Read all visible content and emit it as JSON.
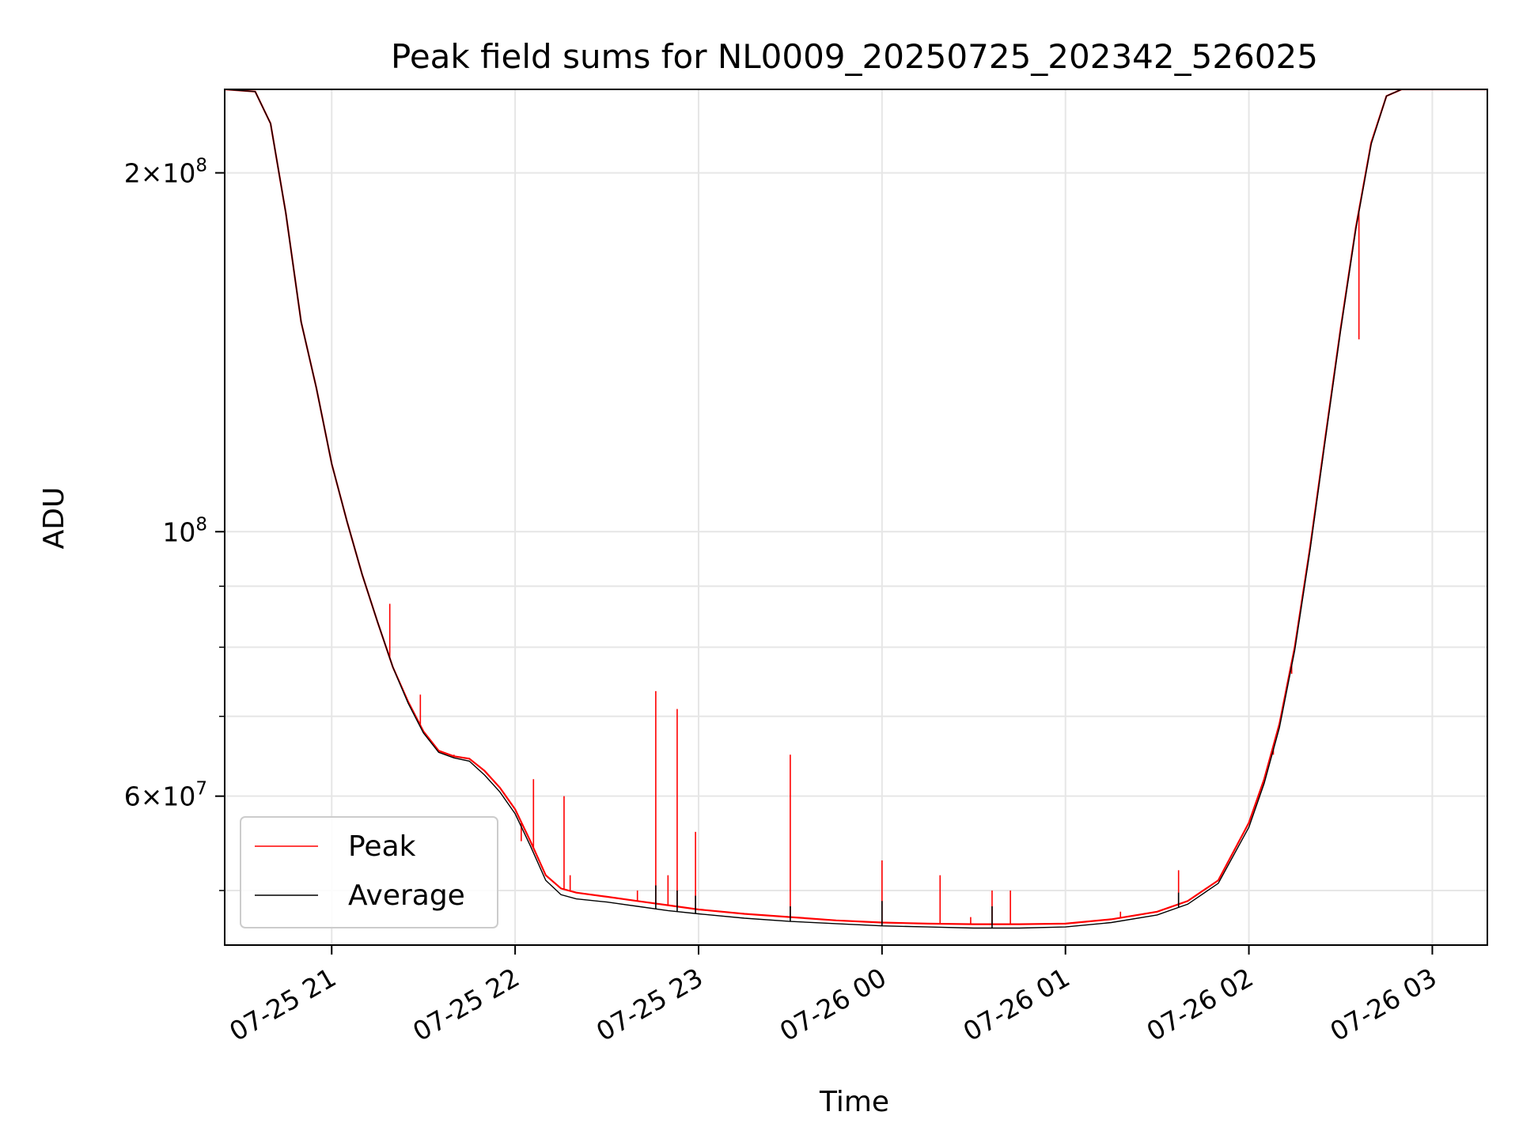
{
  "chart_data": {
    "type": "line",
    "title": "Peak field sums for NL0009_20250725_202342_526025",
    "xlabel": "Time",
    "ylabel": "ADU",
    "y_scale": "log",
    "ylim": [
      45000000,
      235000000
    ],
    "xlim": [
      "2025-07-25 20:25",
      "2025-07-26 03:18"
    ],
    "x_ticks": [
      {
        "t": "2025-07-25 21:00",
        "label": "07-25 21"
      },
      {
        "t": "2025-07-25 22:00",
        "label": "07-25 22"
      },
      {
        "t": "2025-07-25 23:00",
        "label": "07-25 23"
      },
      {
        "t": "2025-07-26 00:00",
        "label": "07-26 00"
      },
      {
        "t": "2025-07-26 01:00",
        "label": "07-26 01"
      },
      {
        "t": "2025-07-26 02:00",
        "label": "07-26 02"
      },
      {
        "t": "2025-07-26 03:00",
        "label": "07-26 03"
      }
    ],
    "y_ticks": [
      {
        "v": 200000000,
        "base": "2",
        "exp": "8"
      },
      {
        "v": 100000000,
        "base": "",
        "exp": "8"
      },
      {
        "v": 60000000,
        "base": "6",
        "exp": "7"
      }
    ],
    "y_minor": [
      50000000,
      70000000,
      80000000,
      90000000
    ],
    "grid": true,
    "legend_position": "lower-left",
    "colors": {
      "peak": "#ff0000",
      "average": "#000000",
      "grid": "#e6e6e6"
    },
    "series": [
      {
        "name": "Peak",
        "color": "#ff0000",
        "points": [
          [
            "2025-07-25 20:25",
            235000000
          ],
          [
            "2025-07-25 20:35",
            234000000
          ],
          [
            "2025-07-25 20:40",
            220000000
          ],
          [
            "2025-07-25 20:45",
            185000000
          ],
          [
            "2025-07-25 20:50",
            150000000
          ],
          [
            "2025-07-25 20:55",
            132000000
          ],
          [
            "2025-07-25 21:00",
            114000000
          ],
          [
            "2025-07-25 21:05",
            102000000
          ],
          [
            "2025-07-25 21:10",
            92000000
          ],
          [
            "2025-07-25 21:15",
            84000000
          ],
          [
            "2025-07-25 21:20",
            77000000
          ],
          [
            "2025-07-25 21:25",
            72000000
          ],
          [
            "2025-07-25 21:30",
            68000000
          ],
          [
            "2025-07-25 21:35",
            65500000
          ],
          [
            "2025-07-25 21:40",
            64800000
          ],
          [
            "2025-07-25 21:45",
            64500000
          ],
          [
            "2025-07-25 21:50",
            63000000
          ],
          [
            "2025-07-25 21:55",
            61000000
          ],
          [
            "2025-07-25 22:00",
            58500000
          ],
          [
            "2025-07-25 22:05",
            55000000
          ],
          [
            "2025-07-25 22:10",
            51500000
          ],
          [
            "2025-07-25 22:15",
            50200000
          ],
          [
            "2025-07-25 22:20",
            49800000
          ],
          [
            "2025-07-25 22:30",
            49400000
          ],
          [
            "2025-07-25 22:40",
            49000000
          ],
          [
            "2025-07-25 22:50",
            48600000
          ],
          [
            "2025-07-25 23:00",
            48200000
          ],
          [
            "2025-07-25 23:15",
            47800000
          ],
          [
            "2025-07-25 23:30",
            47500000
          ],
          [
            "2025-07-25 23:45",
            47200000
          ],
          [
            "2025-07-26 00:00",
            47000000
          ],
          [
            "2025-07-26 00:15",
            46900000
          ],
          [
            "2025-07-26 00:30",
            46850000
          ],
          [
            "2025-07-26 00:45",
            46850000
          ],
          [
            "2025-07-26 01:00",
            46900000
          ],
          [
            "2025-07-26 01:15",
            47300000
          ],
          [
            "2025-07-26 01:30",
            48000000
          ],
          [
            "2025-07-26 01:40",
            49000000
          ],
          [
            "2025-07-26 01:50",
            51000000
          ],
          [
            "2025-07-26 02:00",
            57000000
          ],
          [
            "2025-07-26 02:05",
            62000000
          ],
          [
            "2025-07-26 02:10",
            69000000
          ],
          [
            "2025-07-26 02:15",
            80000000
          ],
          [
            "2025-07-26 02:20",
            97000000
          ],
          [
            "2025-07-26 02:25",
            120000000
          ],
          [
            "2025-07-26 02:30",
            148000000
          ],
          [
            "2025-07-26 02:35",
            180000000
          ],
          [
            "2025-07-26 02:40",
            212000000
          ],
          [
            "2025-07-26 02:45",
            232000000
          ],
          [
            "2025-07-26 02:50",
            235000000
          ],
          [
            "2025-07-26 03:18",
            235000000
          ]
        ],
        "spikes": [
          [
            "2025-07-25 21:19",
            87000000
          ],
          [
            "2025-07-25 21:29",
            73000000
          ],
          [
            "2025-07-25 21:40",
            65000000
          ],
          [
            "2025-07-25 22:02",
            55000000
          ],
          [
            "2025-07-25 22:06",
            62000000
          ],
          [
            "2025-07-25 22:16",
            60000000
          ],
          [
            "2025-07-25 22:18",
            51500000
          ],
          [
            "2025-07-25 22:40",
            50000000
          ],
          [
            "2025-07-25 22:46",
            73500000
          ],
          [
            "2025-07-25 22:50",
            51500000
          ],
          [
            "2025-07-25 22:53",
            71000000
          ],
          [
            "2025-07-25 22:59",
            56000000
          ],
          [
            "2025-07-25 23:30",
            65000000
          ],
          [
            "2025-07-26 00:00",
            53000000
          ],
          [
            "2025-07-26 00:19",
            51500000
          ],
          [
            "2025-07-26 00:29",
            47500000
          ],
          [
            "2025-07-26 00:36",
            50000000
          ],
          [
            "2025-07-26 00:42",
            50000000
          ],
          [
            "2025-07-26 01:18",
            48000000
          ],
          [
            "2025-07-26 01:37",
            52000000
          ],
          [
            "2025-07-26 02:03",
            60000000
          ],
          [
            "2025-07-26 02:08",
            65000000
          ],
          [
            "2025-07-26 02:14",
            76000000
          ],
          [
            "2025-07-26 02:36",
            145000000
          ]
        ]
      },
      {
        "name": "Average",
        "color": "#000000",
        "points": [
          [
            "2025-07-25 20:25",
            235000000
          ],
          [
            "2025-07-25 20:35",
            234000000
          ],
          [
            "2025-07-25 20:40",
            220000000
          ],
          [
            "2025-07-25 20:45",
            185000000
          ],
          [
            "2025-07-25 20:50",
            150000000
          ],
          [
            "2025-07-25 20:55",
            132000000
          ],
          [
            "2025-07-25 21:00",
            114000000
          ],
          [
            "2025-07-25 21:05",
            102000000
          ],
          [
            "2025-07-25 21:10",
            92000000
          ],
          [
            "2025-07-25 21:15",
            84000000
          ],
          [
            "2025-07-25 21:20",
            77000000
          ],
          [
            "2025-07-25 21:25",
            71800000
          ],
          [
            "2025-07-25 21:30",
            67800000
          ],
          [
            "2025-07-25 21:35",
            65300000
          ],
          [
            "2025-07-25 21:40",
            64600000
          ],
          [
            "2025-07-25 21:45",
            64200000
          ],
          [
            "2025-07-25 21:50",
            62500000
          ],
          [
            "2025-07-25 21:55",
            60500000
          ],
          [
            "2025-07-25 22:00",
            58000000
          ],
          [
            "2025-07-25 22:05",
            54500000
          ],
          [
            "2025-07-25 22:10",
            51000000
          ],
          [
            "2025-07-25 22:15",
            49600000
          ],
          [
            "2025-07-25 22:20",
            49200000
          ],
          [
            "2025-07-25 22:30",
            48900000
          ],
          [
            "2025-07-25 22:40",
            48500000
          ],
          [
            "2025-07-25 22:50",
            48100000
          ],
          [
            "2025-07-25 23:00",
            47800000
          ],
          [
            "2025-07-25 23:15",
            47400000
          ],
          [
            "2025-07-25 23:30",
            47100000
          ],
          [
            "2025-07-25 23:45",
            46900000
          ],
          [
            "2025-07-26 00:00",
            46700000
          ],
          [
            "2025-07-26 00:15",
            46600000
          ],
          [
            "2025-07-26 00:30",
            46500000
          ],
          [
            "2025-07-26 00:45",
            46500000
          ],
          [
            "2025-07-26 01:00",
            46600000
          ],
          [
            "2025-07-26 01:15",
            47000000
          ],
          [
            "2025-07-26 01:30",
            47700000
          ],
          [
            "2025-07-26 01:40",
            48700000
          ],
          [
            "2025-07-26 01:50",
            50700000
          ],
          [
            "2025-07-26 02:00",
            56500000
          ],
          [
            "2025-07-26 02:05",
            61500000
          ],
          [
            "2025-07-26 02:10",
            68500000
          ],
          [
            "2025-07-26 02:15",
            79500000
          ],
          [
            "2025-07-26 02:20",
            96500000
          ],
          [
            "2025-07-26 02:25",
            119500000
          ],
          [
            "2025-07-26 02:30",
            147500000
          ],
          [
            "2025-07-26 02:35",
            179500000
          ],
          [
            "2025-07-26 02:40",
            211500000
          ],
          [
            "2025-07-26 02:45",
            232000000
          ],
          [
            "2025-07-26 02:50",
            235000000
          ],
          [
            "2025-07-26 03:18",
            235000000
          ]
        ],
        "spikes": [
          [
            "2025-07-25 22:46",
            50500000
          ],
          [
            "2025-07-25 22:53",
            50000000
          ],
          [
            "2025-07-25 22:59",
            49500000
          ],
          [
            "2025-07-25 23:30",
            48500000
          ],
          [
            "2025-07-26 00:00",
            49000000
          ],
          [
            "2025-07-26 00:36",
            48500000
          ],
          [
            "2025-07-26 01:37",
            49800000
          ]
        ]
      }
    ]
  }
}
